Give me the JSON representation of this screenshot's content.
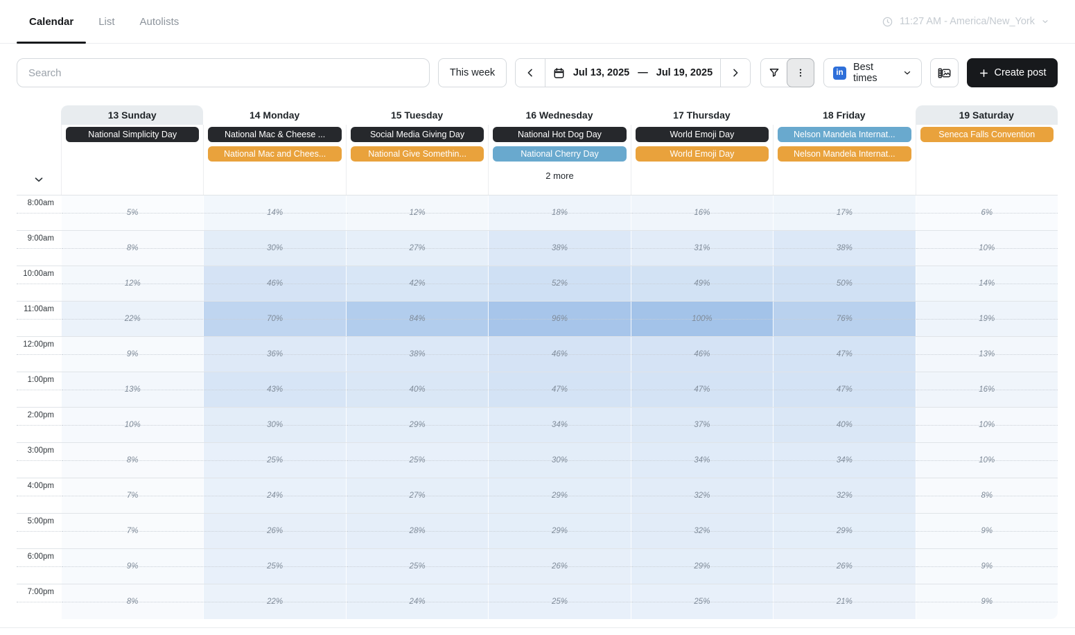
{
  "tabs": [
    {
      "label": "Calendar",
      "active": true
    },
    {
      "label": "List",
      "active": false
    },
    {
      "label": "Autolists",
      "active": false
    }
  ],
  "timezone": {
    "label": "11:27 AM - America/New_York"
  },
  "toolbar": {
    "search_placeholder": "Search",
    "this_week": "This week",
    "date_start": "Jul 13, 2025",
    "date_separator": "—",
    "date_end": "Jul 19, 2025",
    "best_times": "Best times",
    "create_post": "Create post"
  },
  "calendar": {
    "times": [
      "8:00am",
      "9:00am",
      "10:00am",
      "11:00am",
      "12:00pm",
      "1:00pm",
      "2:00pm",
      "3:00pm",
      "4:00pm",
      "5:00pm",
      "6:00pm",
      "7:00pm"
    ],
    "pill_colors": {
      "dark": "#26282c",
      "orange": "#e9a23c",
      "blue": "#69a9ce"
    },
    "heat_base_color": "#a3c3e9",
    "days": [
      {
        "title": "13 Sunday",
        "weekend": true,
        "more": "",
        "events": [
          {
            "label": "National Simplicity Day",
            "color": "dark"
          }
        ],
        "percents": [
          5,
          8,
          12,
          22,
          9,
          13,
          10,
          8,
          7,
          7,
          9,
          8
        ]
      },
      {
        "title": "14 Monday",
        "weekend": false,
        "more": "",
        "events": [
          {
            "label": "National Mac & Cheese ...",
            "color": "dark"
          },
          {
            "label": "National Mac and Chees...",
            "color": "orange"
          }
        ],
        "percents": [
          14,
          30,
          46,
          70,
          36,
          43,
          30,
          25,
          24,
          26,
          25,
          22
        ]
      },
      {
        "title": "15 Tuesday",
        "weekend": false,
        "more": "",
        "events": [
          {
            "label": "Social Media Giving Day",
            "color": "dark"
          },
          {
            "label": "National Give Somethin...",
            "color": "orange"
          }
        ],
        "percents": [
          12,
          27,
          42,
          84,
          38,
          40,
          29,
          25,
          27,
          28,
          25,
          24
        ]
      },
      {
        "title": "16 Wednesday",
        "weekend": false,
        "more": "2 more",
        "events": [
          {
            "label": "National Hot Dog Day",
            "color": "dark"
          },
          {
            "label": "National Cherry Day",
            "color": "blue"
          }
        ],
        "percents": [
          18,
          38,
          52,
          96,
          46,
          47,
          34,
          30,
          29,
          29,
          26,
          25
        ]
      },
      {
        "title": "17 Thursday",
        "weekend": false,
        "more": "",
        "events": [
          {
            "label": "World Emoji Day",
            "color": "dark"
          },
          {
            "label": "World Emoji Day",
            "color": "orange"
          }
        ],
        "percents": [
          16,
          31,
          49,
          100,
          46,
          47,
          37,
          34,
          32,
          32,
          29,
          25
        ]
      },
      {
        "title": "18 Friday",
        "weekend": false,
        "more": "",
        "events": [
          {
            "label": "Nelson Mandela Internat...",
            "color": "blue"
          },
          {
            "label": "Nelson Mandela Internat...",
            "color": "orange"
          }
        ],
        "percents": [
          17,
          38,
          50,
          76,
          47,
          47,
          40,
          34,
          32,
          29,
          26,
          21
        ]
      },
      {
        "title": "19 Saturday",
        "weekend": true,
        "more": "",
        "events": [
          {
            "label": "Seneca Falls Convention",
            "color": "orange"
          }
        ],
        "percents": [
          6,
          10,
          14,
          19,
          13,
          16,
          10,
          10,
          8,
          9,
          9,
          9
        ]
      }
    ]
  }
}
